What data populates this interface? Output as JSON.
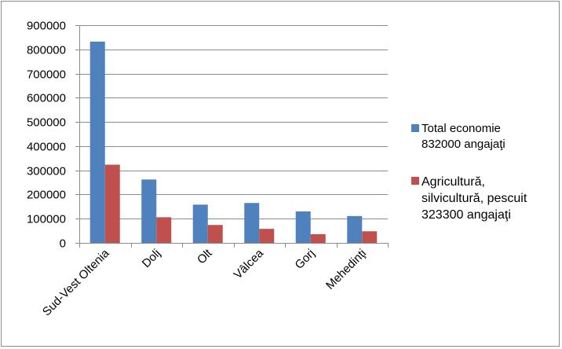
{
  "chart_data": {
    "type": "bar",
    "title": "",
    "xlabel": "",
    "ylabel": "",
    "categories": [
      "Sud-Vest Oltenia",
      "Dolj",
      "Olt",
      "Vâlcea",
      "Gorj",
      "Mehedinţi"
    ],
    "series": [
      {
        "name": "Total economie\n832000 angajaţi",
        "color": "#4f81bd",
        "values": [
          832000,
          262000,
          158000,
          165000,
          130000,
          111000
        ]
      },
      {
        "name": "Agricultură,\nsilvicultură, pescuit\n323300 angajaţi",
        "color": "#c0504d",
        "values": [
          323300,
          106000,
          74000,
          58000,
          36000,
          48000
        ]
      }
    ],
    "ylim": [
      0,
      900000
    ],
    "yticks": [
      0,
      100000,
      200000,
      300000,
      400000,
      500000,
      600000,
      700000,
      800000,
      900000
    ],
    "grid": true,
    "legend_position": "right"
  }
}
